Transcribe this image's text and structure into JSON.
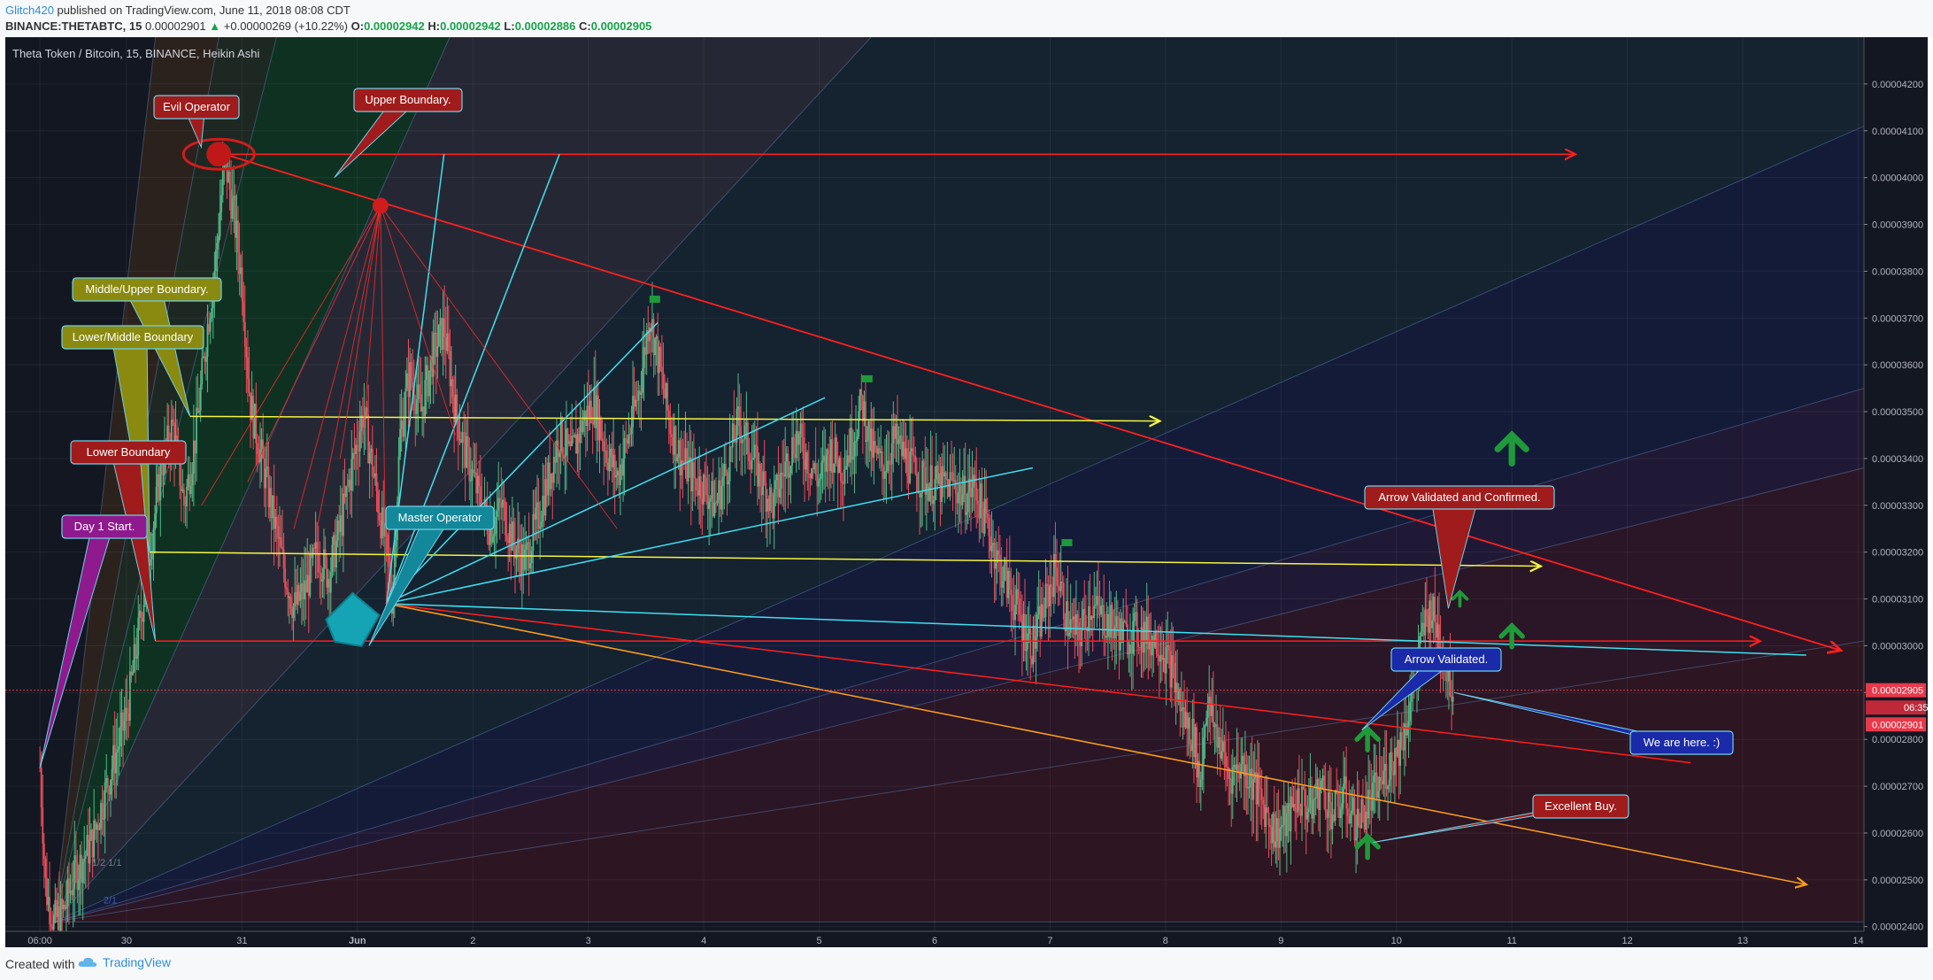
{
  "header": {
    "publisher": "Glitch420",
    "published_text": "published on TradingView.com, June 11, 2018 08:08 CDT",
    "symbol": "BINANCE:THETABTC, 15",
    "last": "0.00002901",
    "change": "+0.00000269 (+10.22%)",
    "o_label": "O:",
    "o": "0.00002942",
    "h_label": "H:",
    "h": "0.00002942",
    "l_label": "L:",
    "l": "0.00002886",
    "c_label": "C:",
    "c": "0.00002905"
  },
  "footer": {
    "created_with": "Created with",
    "brand": "TradingView"
  },
  "colors": {
    "background": "#131722",
    "candle_up": "#53b987",
    "candle_down": "#eb4d5c",
    "trend_red": "#ff1f1f",
    "trend_cyan": "#3fe0ef",
    "trend_yellow": "#f5f542",
    "trend_orange": "#ff9f1c",
    "price_tag": "#e8394a"
  },
  "chart_data": {
    "type": "candlestick",
    "title": "Theta Token / Bitcoin, 15, BINANCE, Heikin Ashi",
    "x_tick_labels": [
      "06:00",
      "30",
      "31",
      "Jun",
      "2",
      "3",
      "4",
      "5",
      "6",
      "7",
      "8",
      "9",
      "10",
      "11",
      "12",
      "13",
      "14"
    ],
    "x_ticks": [
      0,
      0.75,
      1.75,
      2.75,
      3.75,
      4.75,
      5.75,
      6.75,
      7.75,
      8.75,
      9.75,
      10.75,
      11.75,
      12.75,
      13.75,
      14.75,
      15.75
    ],
    "x_range": [
      -0.3,
      15.8
    ],
    "y_range": [
      2.39e-05,
      4.3e-05
    ],
    "y_tick_labels": [
      "0.00002400",
      "0.00002500",
      "0.00002600",
      "0.00002700",
      "0.00002800",
      "0.00002900",
      "0.00003000",
      "0.00003100",
      "0.00003200",
      "0.00003300",
      "0.00003400",
      "0.00003500",
      "0.00003600",
      "0.00003700",
      "0.00003800",
      "0.00003900",
      "0.00004000",
      "0.00004100",
      "0.00004200"
    ],
    "y_ticks": [
      2.4e-05,
      2.5e-05,
      2.6e-05,
      2.7e-05,
      2.8e-05,
      2.9e-05,
      3e-05,
      3.1e-05,
      3.2e-05,
      3.3e-05,
      3.4e-05,
      3.5e-05,
      3.6e-05,
      3.7e-05,
      3.8e-05,
      3.9e-05,
      4e-05,
      4.1e-05,
      4.2e-05
    ],
    "price_tags": [
      {
        "label": "0.00002905",
        "value": 2.905e-05
      },
      {
        "label": "06:35",
        "value": 2.868e-05
      },
      {
        "label": "0.00002901",
        "value": 2.832e-05
      }
    ],
    "price_path": [
      [
        0,
        2.74e-05
      ],
      [
        0.05,
        2.48e-05
      ],
      [
        0.12,
        2.41e-05
      ],
      [
        0.2,
        2.43e-05
      ],
      [
        0.3,
        2.51e-05
      ],
      [
        0.45,
        2.58e-05
      ],
      [
        0.6,
        2.72e-05
      ],
      [
        0.75,
        2.85e-05
      ],
      [
        0.85,
        3.02e-05
      ],
      [
        0.95,
        3.2e-05
      ],
      [
        1.05,
        3.38e-05
      ],
      [
        1.15,
        3.47e-05
      ],
      [
        1.25,
        3.3e-05
      ],
      [
        1.35,
        3.45e-05
      ],
      [
        1.45,
        3.68e-05
      ],
      [
        1.52,
        3.82e-05
      ],
      [
        1.6,
        4.04e-05
      ],
      [
        1.68,
        3.92e-05
      ],
      [
        1.75,
        3.78e-05
      ],
      [
        1.82,
        3.52e-05
      ],
      [
        1.92,
        3.4e-05
      ],
      [
        2.0,
        3.3e-05
      ],
      [
        2.1,
        3.18e-05
      ],
      [
        2.2,
        3.08e-05
      ],
      [
        2.3,
        3.12e-05
      ],
      [
        2.4,
        3.2e-05
      ],
      [
        2.5,
        3.15e-05
      ],
      [
        2.6,
        3.25e-05
      ],
      [
        2.7,
        3.38e-05
      ],
      [
        2.8,
        3.5e-05
      ],
      [
        2.9,
        3.35e-05
      ],
      [
        3.0,
        3.2e-05
      ],
      [
        3.05,
        3.1e-05
      ],
      [
        3.12,
        3.45e-05
      ],
      [
        3.2,
        3.58e-05
      ],
      [
        3.3,
        3.5e-05
      ],
      [
        3.4,
        3.62e-05
      ],
      [
        3.5,
        3.68e-05
      ],
      [
        3.6,
        3.5e-05
      ],
      [
        3.7,
        3.4e-05
      ],
      [
        3.8,
        3.32e-05
      ],
      [
        3.9,
        3.25e-05
      ],
      [
        4.0,
        3.3e-05
      ],
      [
        4.1,
        3.22e-05
      ],
      [
        4.2,
        3.18e-05
      ],
      [
        4.3,
        3.26e-05
      ],
      [
        4.4,
        3.35e-05
      ],
      [
        4.5,
        3.45e-05
      ],
      [
        4.6,
        3.4e-05
      ],
      [
        4.7,
        3.48e-05
      ],
      [
        4.8,
        3.52e-05
      ],
      [
        4.9,
        3.42e-05
      ],
      [
        5.0,
        3.36e-05
      ],
      [
        5.1,
        3.45e-05
      ],
      [
        5.2,
        3.56e-05
      ],
      [
        5.28,
        3.71e-05
      ],
      [
        5.35,
        3.62e-05
      ],
      [
        5.45,
        3.48e-05
      ],
      [
        5.55,
        3.4e-05
      ],
      [
        5.65,
        3.36e-05
      ],
      [
        5.75,
        3.34e-05
      ],
      [
        5.85,
        3.3e-05
      ],
      [
        5.95,
        3.38e-05
      ],
      [
        6.05,
        3.48e-05
      ],
      [
        6.15,
        3.42e-05
      ],
      [
        6.25,
        3.35e-05
      ],
      [
        6.35,
        3.3e-05
      ],
      [
        6.45,
        3.38e-05
      ],
      [
        6.55,
        3.45e-05
      ],
      [
        6.65,
        3.4e-05
      ],
      [
        6.75,
        3.35e-05
      ],
      [
        6.85,
        3.42e-05
      ],
      [
        6.95,
        3.38e-05
      ],
      [
        7.05,
        3.45e-05
      ],
      [
        7.12,
        3.52e-05
      ],
      [
        7.2,
        3.42e-05
      ],
      [
        7.3,
        3.38e-05
      ],
      [
        7.4,
        3.44e-05
      ],
      [
        7.5,
        3.4e-05
      ],
      [
        7.6,
        3.36e-05
      ],
      [
        7.7,
        3.35e-05
      ],
      [
        7.8,
        3.34e-05
      ],
      [
        7.9,
        3.35e-05
      ],
      [
        8.0,
        3.32e-05
      ],
      [
        8.1,
        3.34e-05
      ],
      [
        8.2,
        3.26e-05
      ],
      [
        8.3,
        3.18e-05
      ],
      [
        8.4,
        3.12e-05
      ],
      [
        8.5,
        3.05e-05
      ],
      [
        8.6,
        3e-05
      ],
      [
        8.7,
        3.08e-05
      ],
      [
        8.8,
        3.17e-05
      ],
      [
        8.9,
        3.05e-05
      ],
      [
        9.0,
        3.02e-05
      ],
      [
        9.1,
        3.09e-05
      ],
      [
        9.2,
        3.06e-05
      ],
      [
        9.3,
        3.04e-05
      ],
      [
        9.4,
        3.02e-05
      ],
      [
        9.5,
        3.03e-05
      ],
      [
        9.6,
        3.02e-05
      ],
      [
        9.7,
        3.01e-05
      ],
      [
        9.8,
        2.95e-05
      ],
      [
        9.9,
        2.85e-05
      ],
      [
        10.0,
        2.8e-05
      ],
      [
        10.05,
        2.7e-05
      ],
      [
        10.1,
        2.88e-05
      ],
      [
        10.2,
        2.81e-05
      ],
      [
        10.3,
        2.72e-05
      ],
      [
        10.4,
        2.75e-05
      ],
      [
        10.5,
        2.71e-05
      ],
      [
        10.6,
        2.66e-05
      ],
      [
        10.7,
        2.6e-05
      ],
      [
        10.8,
        2.62e-05
      ],
      [
        10.9,
        2.68e-05
      ],
      [
        11.0,
        2.65e-05
      ],
      [
        11.1,
        2.7e-05
      ],
      [
        11.2,
        2.64e-05
      ],
      [
        11.3,
        2.68e-05
      ],
      [
        11.4,
        2.62e-05
      ],
      [
        11.5,
        2.66e-05
      ],
      [
        11.6,
        2.7e-05
      ],
      [
        11.7,
        2.75e-05
      ],
      [
        11.8,
        2.8e-05
      ],
      [
        11.9,
        2.92e-05
      ],
      [
        12.0,
        3.05e-05
      ],
      [
        12.05,
        3.08e-05
      ],
      [
        12.12,
        3.02e-05
      ],
      [
        12.18,
        2.96e-05
      ],
      [
        12.25,
        2.9e-05
      ]
    ]
  },
  "annotations": {
    "evil_operator": "Evil Operator",
    "upper_boundary": "Upper Boundary.",
    "middle_upper": "Middle/Upper Boundary.",
    "lower_middle": "Lower/Middle Boundary",
    "lower_boundary": "Lower Boundary",
    "day1": "Day 1 Start.",
    "master_operator": "Master Operator",
    "arrow_validated_confirmed": "Arrow Validated and Confirmed.",
    "arrow_validated": "Arrow Validated.",
    "we_are_here": "We are here.  :)",
    "excellent_buy": "Excellent Buy.",
    "fan_label_1": "1/2  1/1",
    "fan_label_2": "2/1"
  }
}
